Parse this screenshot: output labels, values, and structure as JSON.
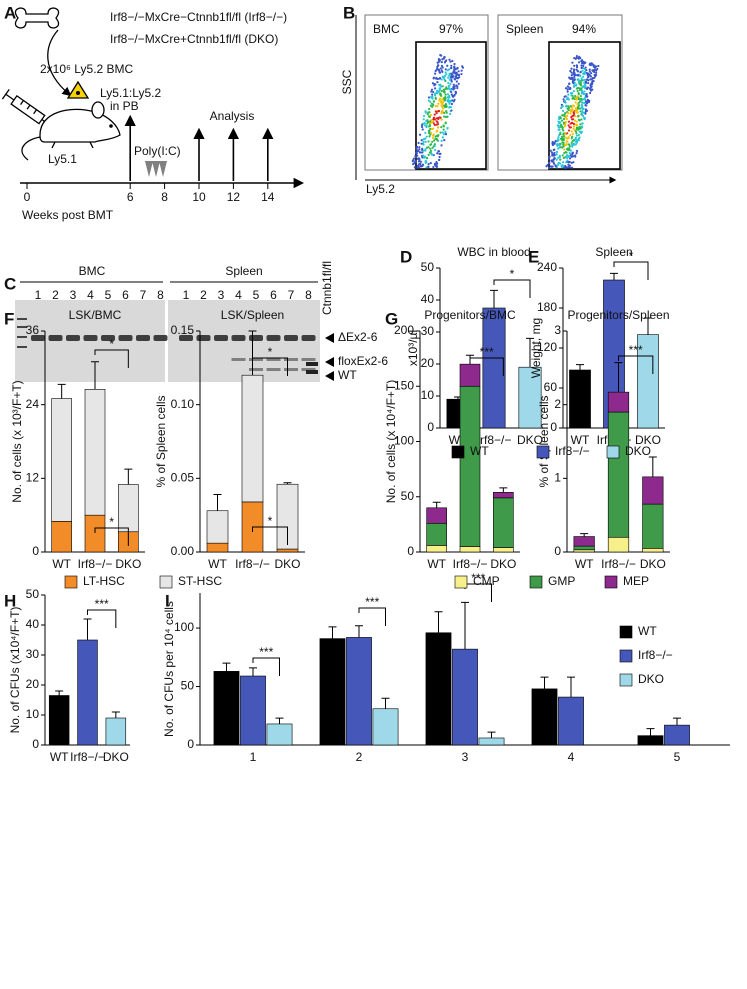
{
  "panel_labels": [
    "A",
    "B",
    "C",
    "D",
    "E",
    "F",
    "G",
    "H",
    "I"
  ],
  "panel_a": {
    "genotypes": [
      "Irf8−/−MxCre−Ctnnb1fl/fl (Irf8−/−)",
      "Irf8−/−MxCre+Ctnnb1fl/fl (DKO)"
    ],
    "donor": "2x10⁶ Ly5.2 BMC",
    "recipient": "Ly5.1",
    "chimerism": [
      "Ly5.1:Ly5.2",
      "in PB"
    ],
    "treatment": "Poly(I:C)",
    "analysis": "Analysis",
    "timeline_ticks": [
      0,
      6,
      8,
      10,
      12,
      14
    ],
    "timeline_label": "Weeks post BMT"
  },
  "panel_b": {
    "plots": [
      {
        "label": "BMC",
        "gate": "97%"
      },
      {
        "label": "Spleen",
        "gate": "94%"
      }
    ],
    "y_label": "SSC",
    "x_label": "Ly5.2"
  },
  "panel_c": {
    "groups": [
      "BMC",
      "Spleen"
    ],
    "lanes": [
      "1",
      "2",
      "3",
      "4",
      "5",
      "6",
      "7",
      "8"
    ],
    "control_lane": "Ctnnb1fl/fl",
    "bands": [
      "ΔEx2-6",
      "floxEx2-6",
      "WT"
    ]
  },
  "chart_data": [
    {
      "type": "bar",
      "title": "WBC in blood",
      "y_label": "x10³/µl",
      "categories": [
        "WT",
        "Irf8−/−",
        "DKO"
      ],
      "values": [
        9,
        37.5,
        19
      ],
      "errors": [
        0.7,
        5.5,
        9
      ],
      "colors": [
        "#000000",
        "#4557b8",
        "#9fd8e8"
      ],
      "ylim": [
        0,
        50
      ],
      "yticks": [
        0,
        10,
        20,
        30,
        40,
        50
      ],
      "significance": [
        "*"
      ]
    },
    {
      "type": "bar",
      "title": "Spleen",
      "y_label": "Weight, mg",
      "categories": [
        "WT",
        "Irf8−/−",
        "DKO"
      ],
      "values": [
        87,
        222,
        140
      ],
      "errors": [
        8,
        10,
        25
      ],
      "colors": [
        "#000000",
        "#4557b8",
        "#9fd8e8"
      ],
      "ylim": [
        0,
        240
      ],
      "yticks": [
        0,
        60,
        120,
        180,
        240
      ],
      "significance": [
        "*"
      ]
    },
    {
      "type": "bar",
      "stacked": true,
      "title": "LSK/BMC",
      "y_label": "No. of cells (x 10³/F+T)",
      "categories": [
        "WT",
        "Irf8−/−",
        "DKO"
      ],
      "series": [
        {
          "name": "LT-HSC",
          "color": "#f28c28",
          "values": [
            5,
            6,
            3.3
          ],
          "errors": [
            1.3,
            1.5,
            0.8
          ]
        },
        {
          "name": "ST-HSC",
          "color": "#e6e6e6",
          "values": [
            20,
            20.5,
            7.7
          ],
          "errors": [
            2.3,
            4.5,
            2.5
          ]
        }
      ],
      "ylim": [
        0,
        36
      ],
      "yticks": [
        0,
        12,
        24,
        36
      ],
      "significance": [
        "*",
        "*"
      ]
    },
    {
      "type": "bar",
      "stacked": true,
      "title": "LSK/Spleen",
      "y_label": "% of Spleen cells",
      "categories": [
        "WT",
        "Irf8−/−",
        "DKO"
      ],
      "series": [
        {
          "name": "LT-HSC",
          "color": "#f28c28",
          "values": [
            0.006,
            0.034,
            0.002
          ],
          "errors": [
            0.003,
            0.015,
            0.001
          ]
        },
        {
          "name": "ST-HSC",
          "color": "#e6e6e6",
          "values": [
            0.022,
            0.086,
            0.044
          ],
          "errors": [
            0.011,
            0.03,
            0.001
          ]
        }
      ],
      "ylim": [
        0,
        0.15
      ],
      "yticks": [
        {
          "value": 0,
          "label": "0.00"
        },
        0.05,
        {
          "value": 0.1,
          "label": "0.10"
        },
        0.15
      ],
      "significance": [
        "*",
        "*"
      ]
    },
    {
      "type": "bar",
      "stacked": true,
      "title": "Progenitors/BMC",
      "y_label": "No. of cells (x 10⁴/F+T)",
      "categories": [
        "WT",
        "Irf8−/−",
        "DKO"
      ],
      "series": [
        {
          "name": "CMP",
          "color": "#f7f08a",
          "values": [
            6,
            5,
            4
          ],
          "errors": [
            3,
            2,
            1
          ]
        },
        {
          "name": "GMP",
          "color": "#3f9a4a",
          "values": [
            20,
            145,
            45
          ],
          "errors": [
            4,
            5,
            3
          ]
        },
        {
          "name": "MEP",
          "color": "#8e2a8e",
          "values": [
            14,
            20,
            5
          ],
          "errors": [
            5,
            8,
            4
          ]
        }
      ],
      "ylim": [
        0,
        200
      ],
      "yticks": [
        0,
        50,
        100,
        150,
        200
      ],
      "significance": [
        "***"
      ]
    },
    {
      "type": "bar",
      "stacked": true,
      "title": "Progenitors/Spleen",
      "y_label": "% of Spleen cells",
      "categories": [
        "WT",
        "Irf8−/−",
        "DKO"
      ],
      "series": [
        {
          "name": "CMP",
          "color": "#f7f08a",
          "values": [
            0.03,
            0.2,
            0.05
          ],
          "errors": [
            0.01,
            0.12,
            0.02
          ]
        },
        {
          "name": "GMP",
          "color": "#3f9a4a",
          "values": [
            0.05,
            1.7,
            0.6
          ],
          "errors": [
            0.02,
            0.12,
            0.05
          ]
        },
        {
          "name": "MEP",
          "color": "#8e2a8e",
          "values": [
            0.13,
            0.27,
            0.37
          ],
          "errors": [
            0.04,
            0.4,
            0.27
          ]
        }
      ],
      "ylim": [
        0,
        3
      ],
      "yticks": [
        0,
        1,
        2,
        3
      ],
      "significance": [
        "***"
      ]
    },
    {
      "type": "bar",
      "y_label": "No. of CFUs (x10⁴/F+T)",
      "categories": [
        "WT",
        "Irf8−/−",
        "DKO"
      ],
      "values": [
        16.5,
        35,
        9
      ],
      "errors": [
        1.5,
        7,
        2
      ],
      "colors": [
        "#000000",
        "#4557b8",
        "#9fd8e8"
      ],
      "ylim": [
        0,
        50
      ],
      "yticks": [
        0,
        10,
        20,
        30,
        40,
        50
      ],
      "significance": [
        "***"
      ]
    },
    {
      "type": "bar",
      "y_label": "No. of CFUs per 10⁴ cells",
      "categories": [
        "1",
        "2",
        "3",
        "4",
        "5"
      ],
      "series": [
        {
          "name": "WT",
          "color": "#000000",
          "values": [
            63,
            91,
            96,
            48,
            8
          ],
          "errors": [
            7,
            10,
            18,
            10,
            6
          ]
        },
        {
          "name": "Irf8−/−",
          "color": "#4557b8",
          "values": [
            59,
            92,
            82,
            41,
            17
          ],
          "errors": [
            7,
            10,
            40,
            17,
            6
          ]
        },
        {
          "name": "DKO",
          "color": "#9fd8e8",
          "values": [
            18,
            31,
            6,
            null,
            null
          ],
          "errors": [
            5,
            9,
            5,
            null,
            null
          ]
        }
      ],
      "ylim": [
        0,
        130
      ],
      "yticks": [
        0,
        50,
        100
      ],
      "significance": [
        "***",
        "***",
        "***"
      ]
    }
  ]
}
